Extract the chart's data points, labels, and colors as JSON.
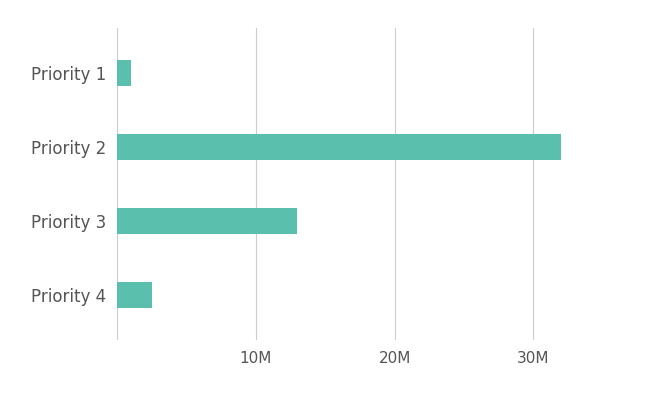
{
  "categories": [
    "Priority 1",
    "Priority 2",
    "Priority 3",
    "Priority 4"
  ],
  "values": [
    1000000,
    32000000,
    13000000,
    2500000
  ],
  "bar_color": "#5bbfad",
  "bar_height": 0.35,
  "xlim": [
    0,
    37000000
  ],
  "xticks": [
    0,
    10000000,
    20000000,
    30000000
  ],
  "xtick_labels": [
    "",
    "10M",
    "20M",
    "30M"
  ],
  "background_color": "#ffffff",
  "label_fontsize": 12,
  "tick_fontsize": 11,
  "grid_color": "#cccccc",
  "text_color": "#555555",
  "figsize": [
    6.5,
    4.0
  ],
  "dpi": 100
}
